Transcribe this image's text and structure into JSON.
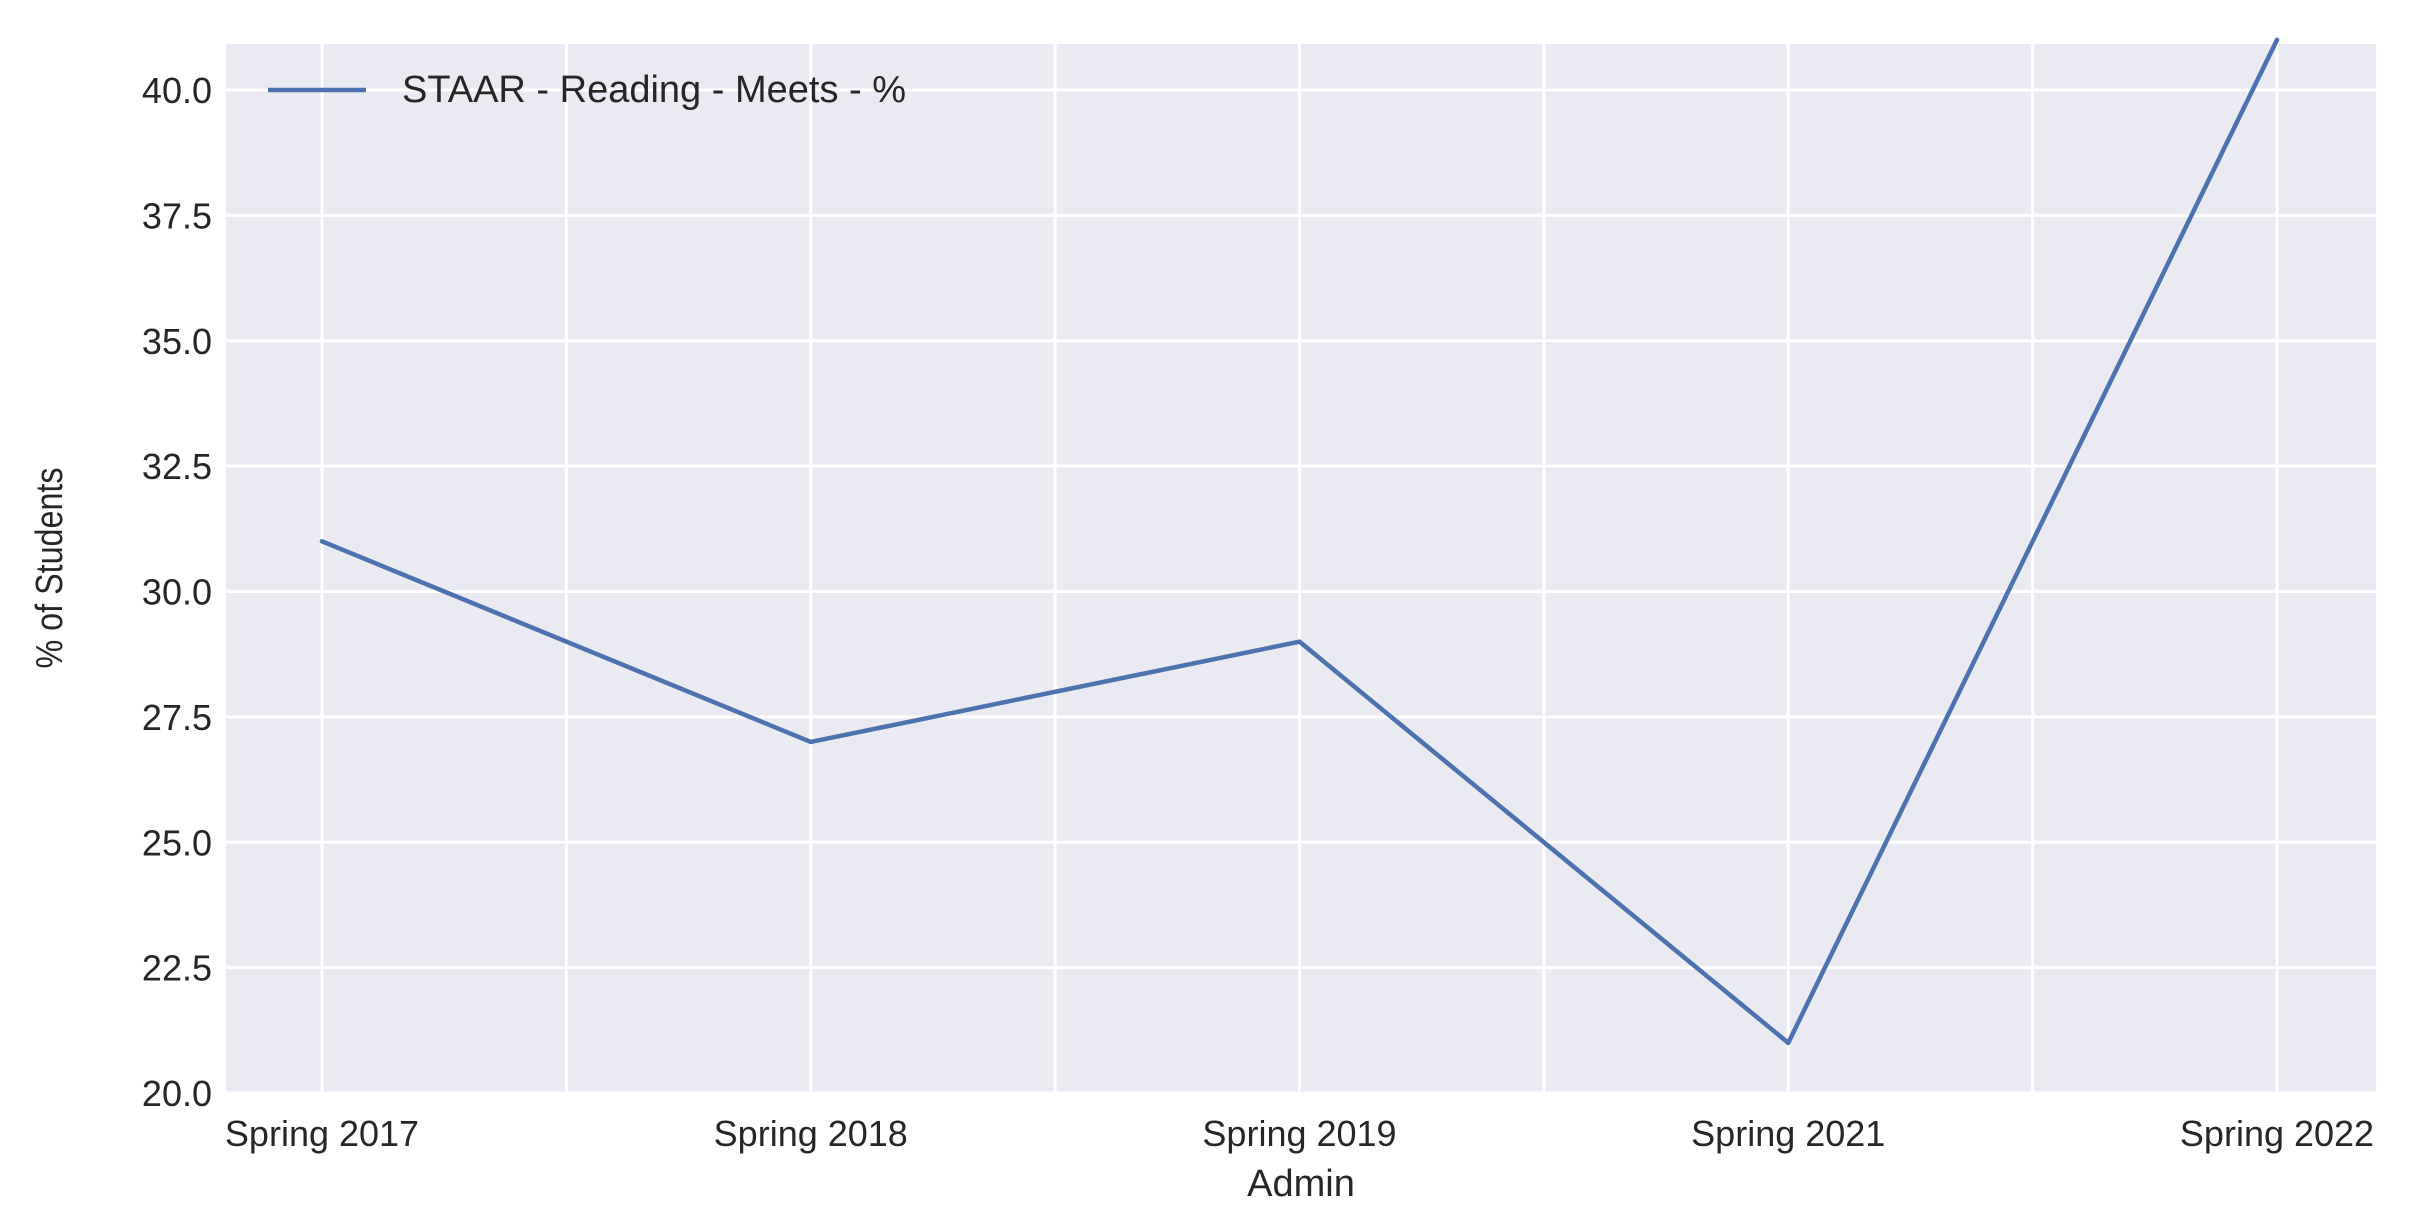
{
  "chart_data": {
    "type": "line",
    "title": "",
    "xlabel": "Admin",
    "ylabel": "% of Students",
    "categories": [
      "Spring 2017",
      "Spring 2018",
      "Spring 2019",
      "Spring 2021",
      "Spring 2022"
    ],
    "series": [
      {
        "name": "STAAR - Reading - Meets - %",
        "values": [
          31,
          27,
          29,
          21,
          41
        ],
        "color": "#4c72b0"
      }
    ],
    "ylim": [
      20,
      41.5
    ],
    "yticks": [
      20.0,
      22.5,
      25.0,
      27.5,
      30.0,
      32.5,
      35.0,
      37.5,
      40.0
    ],
    "ytick_labels": [
      "20.0",
      "22.5",
      "25.0",
      "27.5",
      "30.0",
      "32.5",
      "35.0",
      "37.5",
      "40.0"
    ],
    "grid": true,
    "legend_position": "top-left",
    "background_color": "#eaeaf2",
    "grid_color": "#ffffff"
  }
}
